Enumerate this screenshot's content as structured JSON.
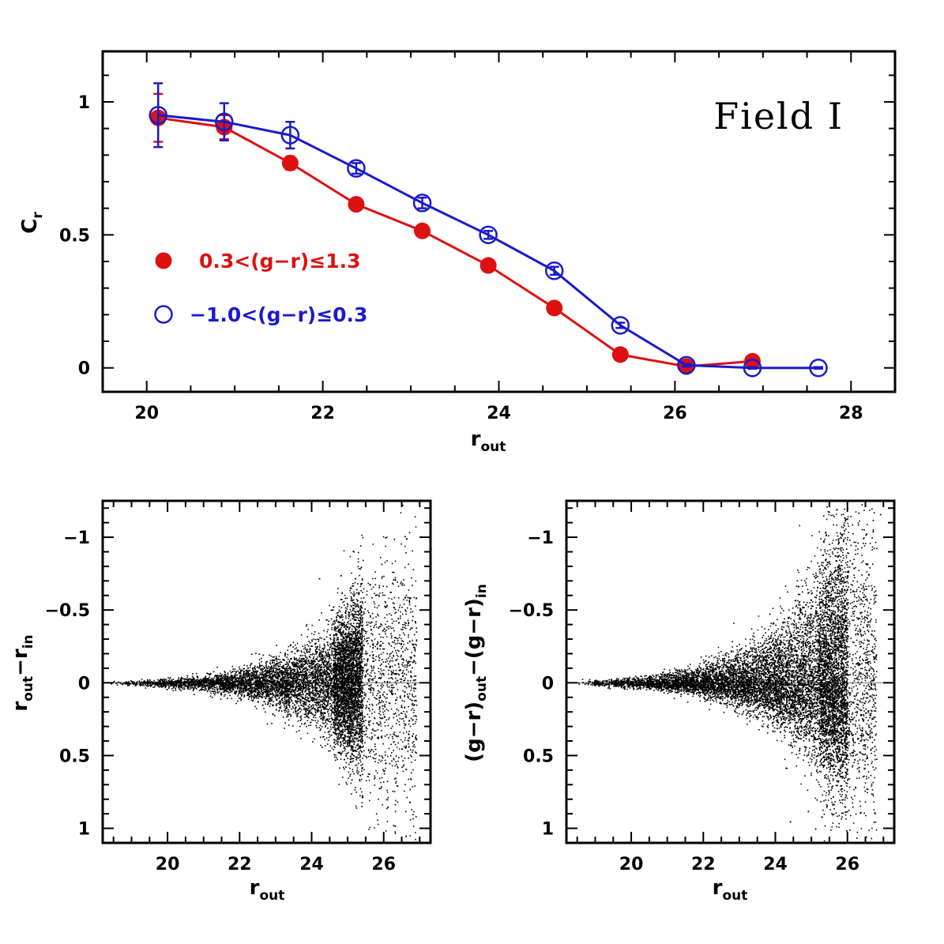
{
  "chart_data": [
    {
      "type": "line",
      "xlim": [
        19.5,
        28.5
      ],
      "ylim": [
        -0.09,
        1.19
      ],
      "xticks": [
        20,
        22,
        24,
        26,
        28
      ],
      "xtick_labels": [
        "20",
        "22",
        "24",
        "26",
        "28"
      ],
      "yticks": [
        0,
        0.5,
        1
      ],
      "ytick_labels": [
        "0",
        "0.5",
        "1"
      ],
      "xlabel": {
        "base": "r",
        "sub": "out"
      },
      "ylabel": {
        "base": "C",
        "sub": "r"
      },
      "annotation": "Field I",
      "legend_position": "left-middle",
      "series": [
        {
          "name": "0.3<(g−r)≤1.3",
          "color": "#dd1111",
          "marker": "filled-circle",
          "x": [
            20.13,
            20.88,
            21.63,
            22.38,
            23.13,
            23.88,
            24.63,
            25.38,
            26.13,
            26.88
          ],
          "y": [
            0.94,
            0.905,
            0.77,
            0.615,
            0.515,
            0.385,
            0.225,
            0.05,
            0.005,
            0.025
          ],
          "err": [
            0.09,
            0.045,
            0.025,
            0.01,
            0.01,
            0.008,
            0.008,
            0.008,
            0.004,
            0.004
          ]
        },
        {
          "name": "−1.0<(g−r)≤0.3",
          "color": "#1a1acc",
          "marker": "open-circle",
          "x": [
            20.13,
            20.88,
            21.63,
            22.38,
            23.13,
            23.88,
            24.63,
            25.38,
            26.13,
            26.88,
            27.63
          ],
          "y": [
            0.95,
            0.925,
            0.875,
            0.75,
            0.62,
            0.5,
            0.365,
            0.16,
            0.01,
            0.0,
            0.0
          ],
          "err": [
            0.12,
            0.07,
            0.05,
            0.02,
            0.02,
            0.015,
            0.015,
            0.01,
            0.005,
            0.003,
            0.003
          ]
        }
      ]
    },
    {
      "type": "scatter",
      "xlim": [
        18.2,
        27.3
      ],
      "ylim": [
        1.1,
        -1.25
      ],
      "xticks": [
        20,
        22,
        24,
        26
      ],
      "xtick_labels": [
        "20",
        "22",
        "24",
        "26"
      ],
      "yticks": [
        -1,
        -0.5,
        0,
        0.5,
        1
      ],
      "ytick_labels": [
        "−1",
        "−0.5",
        "0",
        "0.5",
        "1"
      ],
      "xlabel": {
        "base": "r",
        "sub": "out"
      },
      "ylabel": {
        "parts": [
          {
            "base": "r",
            "sub": "out"
          },
          {
            "base": "−r",
            "sub": "in"
          }
        ]
      },
      "reference_line": 0,
      "point_color": "#000000",
      "scatter_envelope": {
        "x_start": 18.3,
        "x_peak": 25.4,
        "x_end": 26.9,
        "n_points": 9000
      },
      "outliers": [
        {
          "x": 24.2,
          "y": -0.72
        },
        {
          "x": 24.8,
          "y": -0.74
        },
        {
          "x": 25.2,
          "y": -0.72
        },
        {
          "x": 25.6,
          "y": -0.68
        },
        {
          "x": 25.9,
          "y": 0.72
        },
        {
          "x": 26.1,
          "y": 0.85
        },
        {
          "x": 26.3,
          "y": 0.98
        },
        {
          "x": 26.6,
          "y": 1.05
        },
        {
          "x": 26.0,
          "y": 0.62
        },
        {
          "x": 25.4,
          "y": 0.78
        }
      ]
    },
    {
      "type": "scatter",
      "xlim": [
        18.2,
        27.3
      ],
      "ylim": [
        1.1,
        -1.25
      ],
      "xticks": [
        20,
        22,
        24,
        26
      ],
      "xtick_labels": [
        "20",
        "22",
        "24",
        "26"
      ],
      "yticks": [
        -1,
        -0.5,
        0,
        0.5,
        1
      ],
      "ytick_labels": [
        "−1",
        "−0.5",
        "0",
        "0.5",
        "1"
      ],
      "xlabel": {
        "base": "r",
        "sub": "out"
      },
      "ylabel": {
        "parts": [
          {
            "base": "(g−r)",
            "sub": "out"
          },
          {
            "base": "−(g−r)",
            "sub": "in"
          }
        ]
      },
      "reference_line": 0,
      "point_color": "#000000",
      "scatter_envelope": {
        "x_start": 18.3,
        "x_peak": 26.0,
        "x_end": 26.8,
        "n_points": 11000
      },
      "outliers": [
        {
          "x": 25.3,
          "y": -0.88
        },
        {
          "x": 25.9,
          "y": -1.05
        },
        {
          "x": 26.3,
          "y": -1.17
        },
        {
          "x": 26.7,
          "y": -1.12
        },
        {
          "x": 26.9,
          "y": -1.16
        },
        {
          "x": 26.5,
          "y": -1.02
        },
        {
          "x": 24.4,
          "y": 0.95
        },
        {
          "x": 25.1,
          "y": 1.0
        },
        {
          "x": 25.6,
          "y": 0.9
        },
        {
          "x": 24.9,
          "y": 0.88
        }
      ]
    }
  ]
}
